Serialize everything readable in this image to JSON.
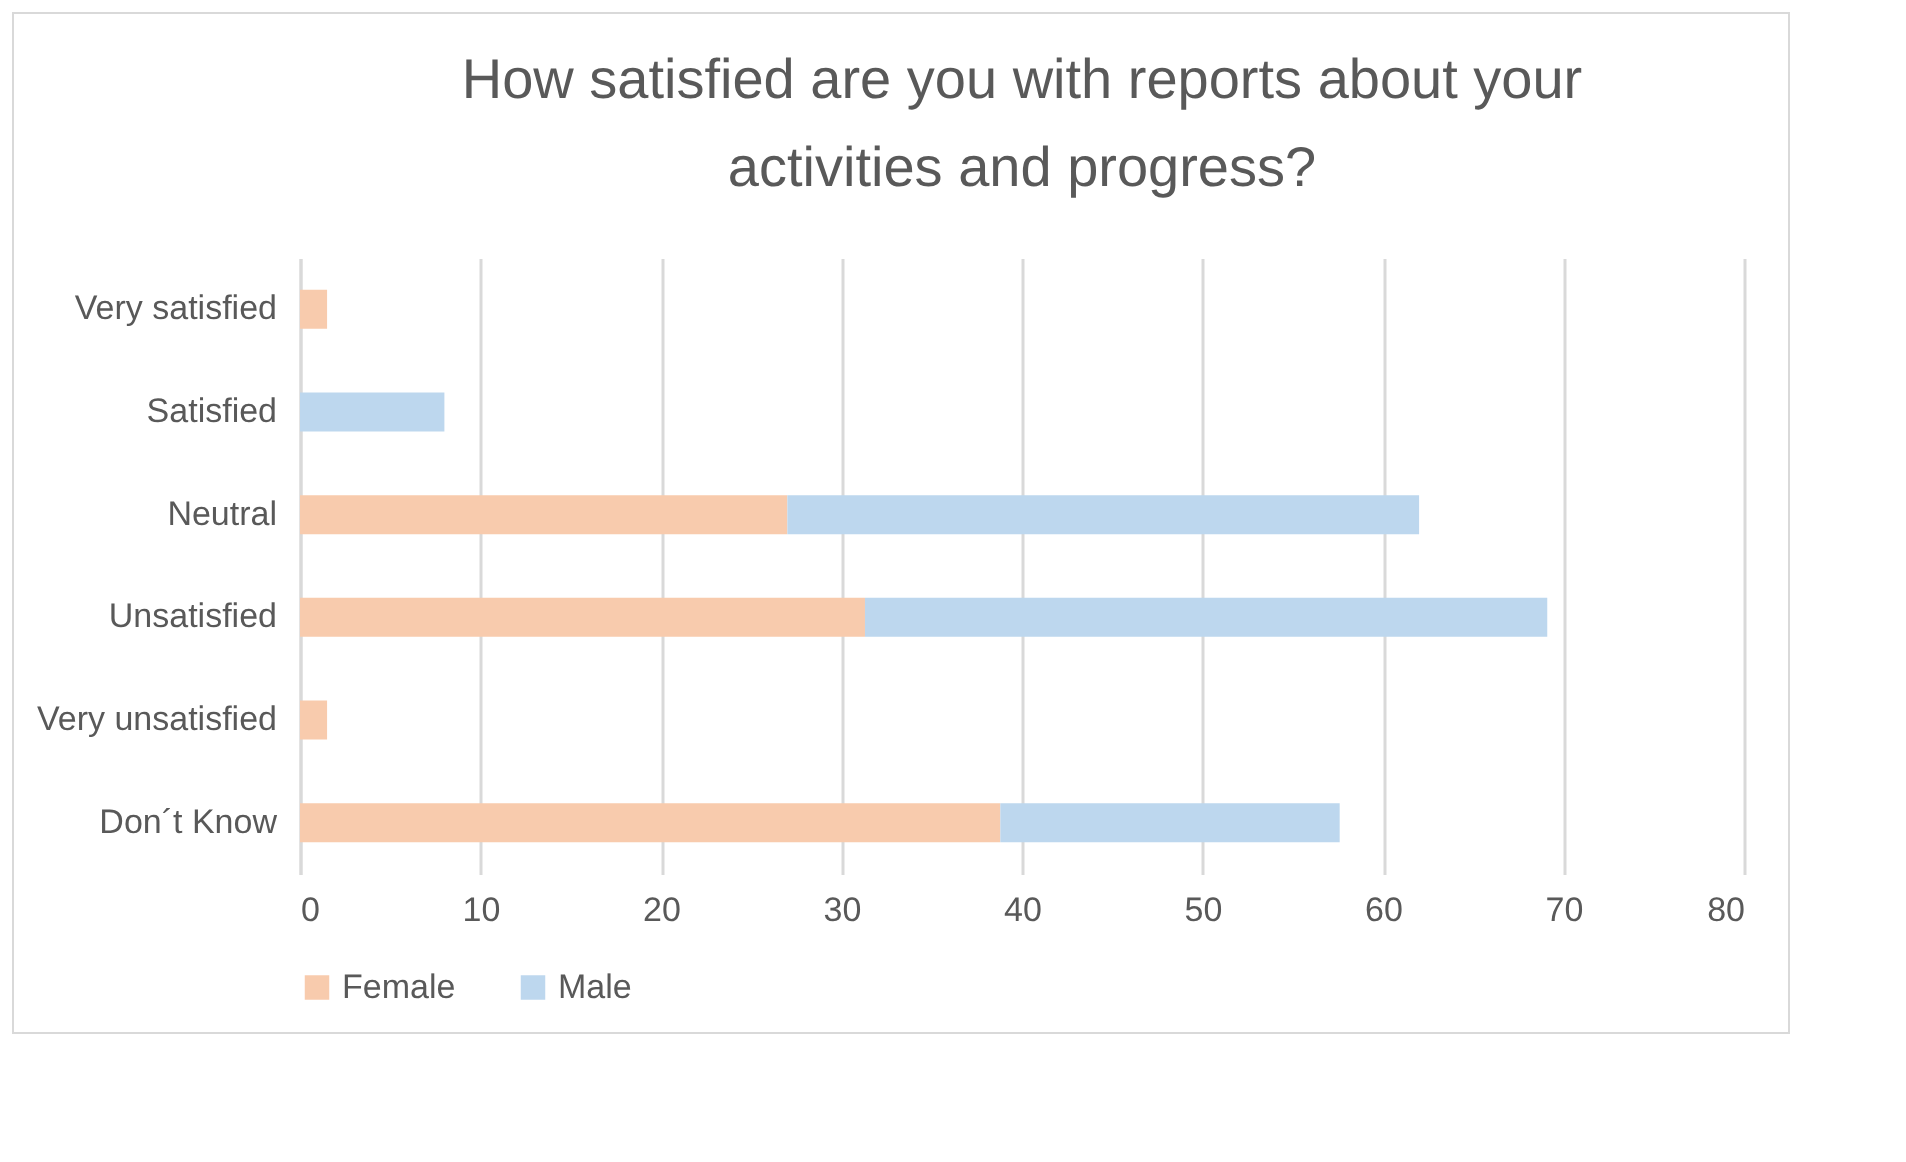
{
  "chart_data": {
    "type": "bar",
    "orientation": "horizontal",
    "stacked": true,
    "title": "How satisfied are you with reports about your activities and progress?",
    "categories": [
      "Very satisfied",
      "Satisfied",
      "Neutral",
      "Unsatisfied",
      "Very unsatisfied",
      "Don´t Know"
    ],
    "series": [
      {
        "name": "Female",
        "color": "#f8cbad",
        "values": [
          1.5,
          0,
          27,
          31.3,
          1.5,
          38.8
        ]
      },
      {
        "name": "Male",
        "color": "#bdd7ee",
        "values": [
          0,
          8,
          35,
          37.8,
          0,
          18.8
        ]
      }
    ],
    "xlim": [
      0,
      80
    ],
    "xticks": [
      0,
      10,
      20,
      30,
      40,
      50,
      60,
      70,
      80
    ],
    "grid": "x",
    "legend": "bottom"
  }
}
